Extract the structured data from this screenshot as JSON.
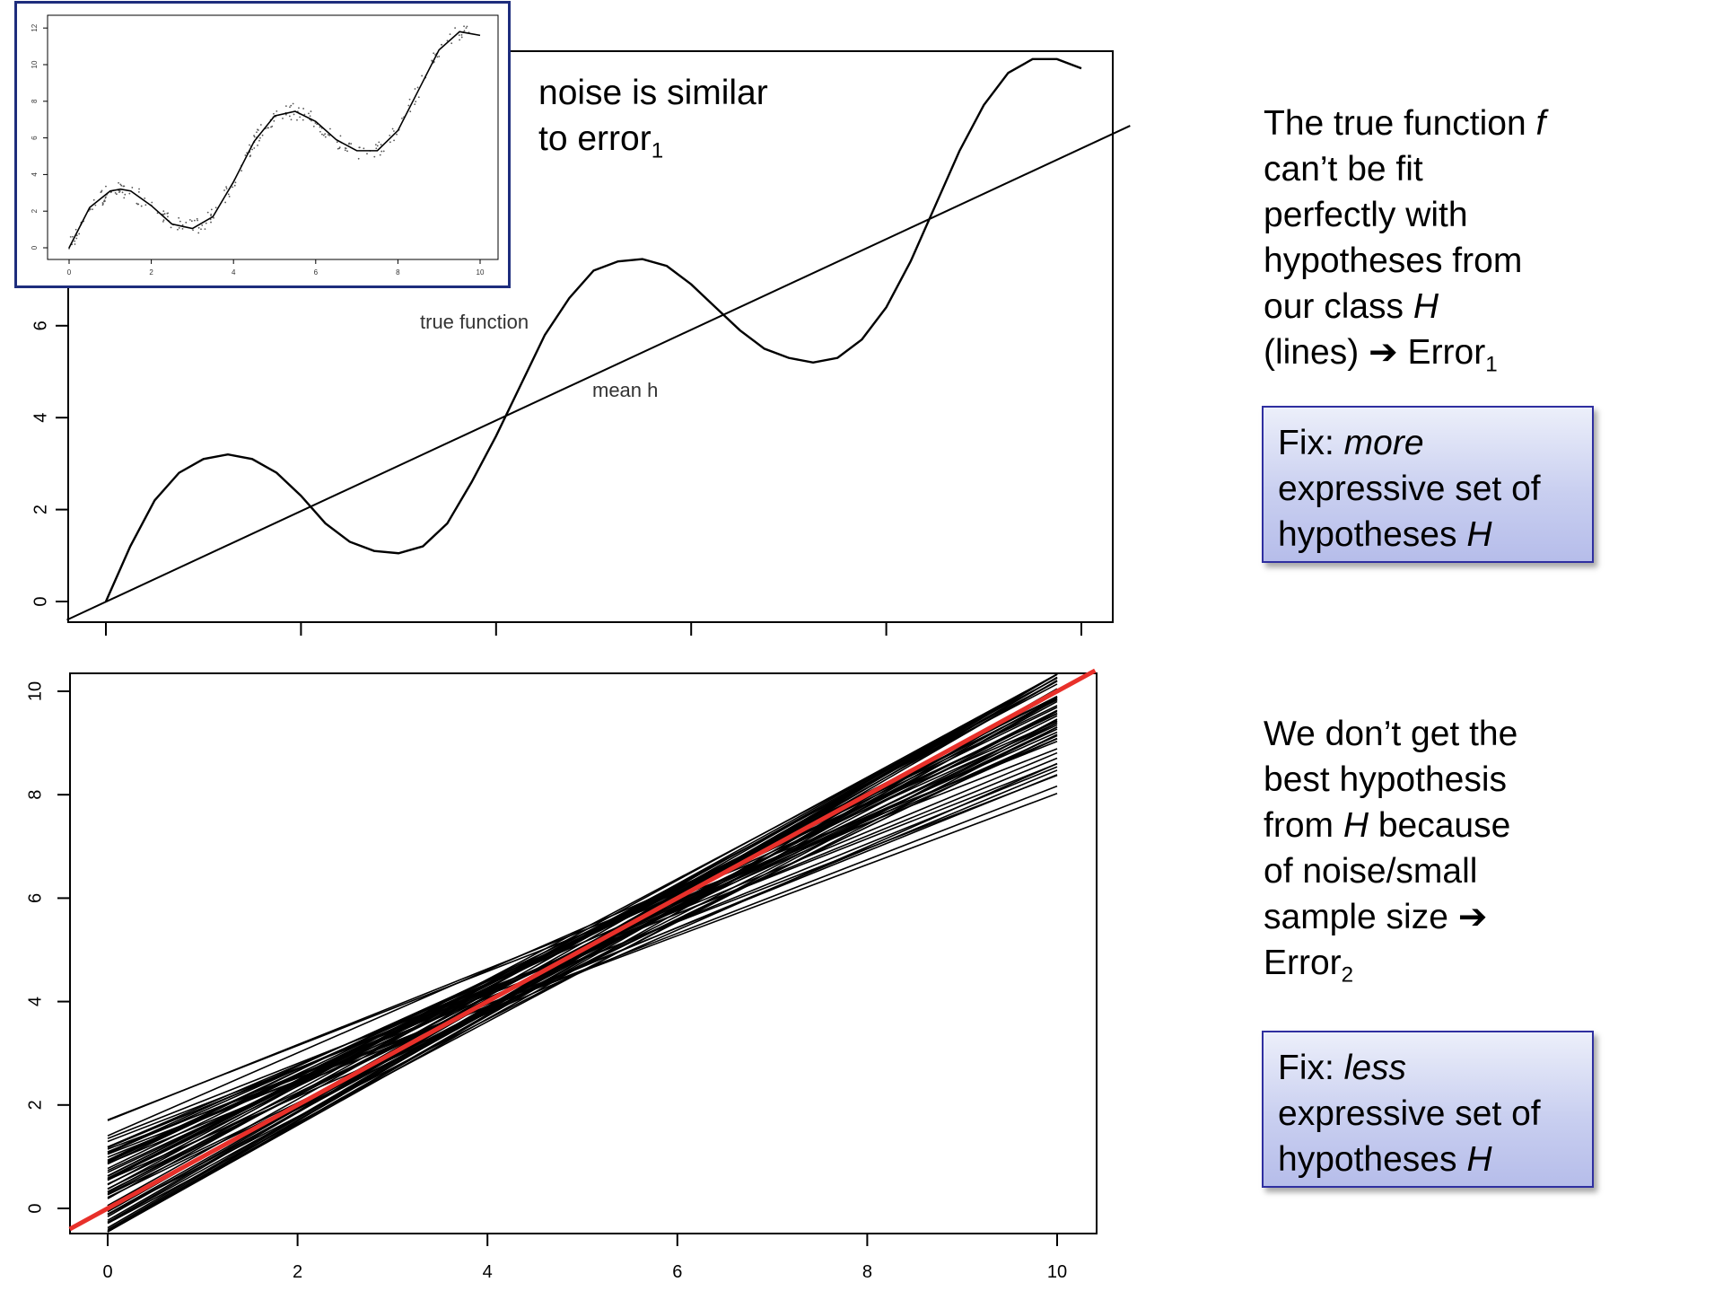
{
  "top_panel": {
    "annotation_line1": "noise is similar",
    "annotation_line2_main": "to error",
    "annotation_line2_sub": "1",
    "label_true_function": "true function",
    "label_mean_h": "mean h"
  },
  "right_panel": {
    "text1": {
      "line1_main": "The true function ",
      "line1_italic": "f",
      "line2": "can’t be fit",
      "line3": "perfectly with",
      "line4": "hypotheses from",
      "line5_main": "our class ",
      "line5_italic": "H",
      "line6_main": "(lines) ",
      "arrow": "➔",
      "line6_error": " Error",
      "line6_sub": "1"
    },
    "fix1": {
      "prefix": "Fix: ",
      "italic": "more",
      "line2": "expressive set of",
      "line3_main": "hypotheses ",
      "line3_italic": "H"
    },
    "text2": {
      "line1": "We don’t get the",
      "line2": "best hypothesis",
      "line3_main": "from ",
      "line3_italic": "H",
      "line3_rest": " because",
      "line4": "of noise/small",
      "line5_main": "sample size ",
      "arrow": "➔",
      "line6_main": "Error",
      "line6_sub": "2"
    },
    "fix2": {
      "prefix": "Fix: ",
      "italic": "less",
      "line2": "expressive set of",
      "line3_main": "hypotheses ",
      "line3_italic": "H"
    }
  },
  "colors": {
    "curve": "#000000",
    "fit_line_red": "#e8302a",
    "inset_border": "#1e2d7d",
    "fix_border": "#2f2fa0"
  },
  "chart_data": [
    {
      "panel": "top",
      "type": "line",
      "xlim": [
        -0.2,
        10.5
      ],
      "ylim": [
        -0.4,
        12
      ],
      "x_ticks": [
        0,
        2,
        4,
        6,
        8,
        10
      ],
      "x_tick_labels_visible": false,
      "y_ticks": [
        0,
        2,
        4,
        6
      ],
      "y_tick_labels": [
        "0",
        "2",
        "4",
        "6"
      ],
      "series": [
        {
          "name": "true function",
          "x": [
            0,
            0.25,
            0.5,
            0.75,
            1.0,
            1.25,
            1.5,
            1.75,
            2.0,
            2.25,
            2.5,
            2.75,
            3.0,
            3.25,
            3.5,
            3.75,
            4.0,
            4.25,
            4.5,
            4.75,
            5.0,
            5.25,
            5.5,
            5.75,
            6.0,
            6.25,
            6.5,
            6.75,
            7.0,
            7.25,
            7.5,
            7.75,
            8.0,
            8.25,
            8.5,
            8.75,
            9.0,
            9.25,
            9.5,
            9.75,
            10.0
          ],
          "y": [
            0,
            1.2,
            2.2,
            2.8,
            3.1,
            3.2,
            3.1,
            2.8,
            2.3,
            1.7,
            1.3,
            1.1,
            1.05,
            1.2,
            1.7,
            2.6,
            3.6,
            4.7,
            5.8,
            6.6,
            7.2,
            7.4,
            7.45,
            7.3,
            6.9,
            6.4,
            5.9,
            5.5,
            5.3,
            5.2,
            5.3,
            5.7,
            6.4,
            7.4,
            8.6,
            9.8,
            10.8,
            11.5,
            11.8,
            11.8,
            11.6
          ]
        },
        {
          "name": "mean h",
          "x": [
            -0.4,
            10.5
          ],
          "y": [
            -0.4,
            10.35
          ]
        }
      ]
    },
    {
      "panel": "inset",
      "type": "scatter",
      "xlim": [
        0,
        10
      ],
      "ylim": [
        0,
        12
      ],
      "x_tick_labels": [
        "0",
        "2",
        "4",
        "6",
        "8",
        "10"
      ],
      "y_tick_labels": [
        "0",
        "2",
        "4",
        "6",
        "8",
        "10",
        "12"
      ],
      "series": [
        {
          "name": "true function",
          "x": [
            0,
            0.5,
            1.0,
            1.25,
            1.5,
            2.0,
            2.5,
            3.0,
            3.5,
            4.0,
            4.5,
            5.0,
            5.5,
            6.0,
            6.5,
            7.0,
            7.5,
            8.0,
            8.5,
            9.0,
            9.5,
            10.0
          ],
          "y": [
            0,
            2.2,
            3.1,
            3.2,
            3.1,
            2.3,
            1.3,
            1.05,
            1.7,
            3.6,
            5.8,
            7.2,
            7.45,
            6.9,
            5.9,
            5.3,
            5.3,
            6.4,
            8.6,
            10.8,
            11.8,
            11.6
          ]
        }
      ]
    },
    {
      "panel": "bottom",
      "type": "line",
      "xlim": [
        -0.4,
        10.4
      ],
      "ylim": [
        -0.4,
        10.4
      ],
      "x_ticks": [
        0,
        2,
        4,
        6,
        8,
        10
      ],
      "x_tick_labels": [
        "0",
        "2",
        "4",
        "6",
        "8",
        "10"
      ],
      "y_ticks": [
        0,
        2,
        4,
        6,
        8,
        10
      ],
      "y_tick_labels": [
        "0",
        "2",
        "4",
        "6",
        "8",
        "10"
      ],
      "series": [
        {
          "name": "",
          "x": [
            -0.4,
            10.4
          ],
          "y": [
            -0.4,
            10.4
          ],
          "color": "red"
        }
      ],
      "fitted_lines": {
        "count": 60,
        "intercept_range": [
          -0.6,
          1.8
        ],
        "slope_range": [
          0.68,
          1.12
        ]
      }
    }
  ]
}
